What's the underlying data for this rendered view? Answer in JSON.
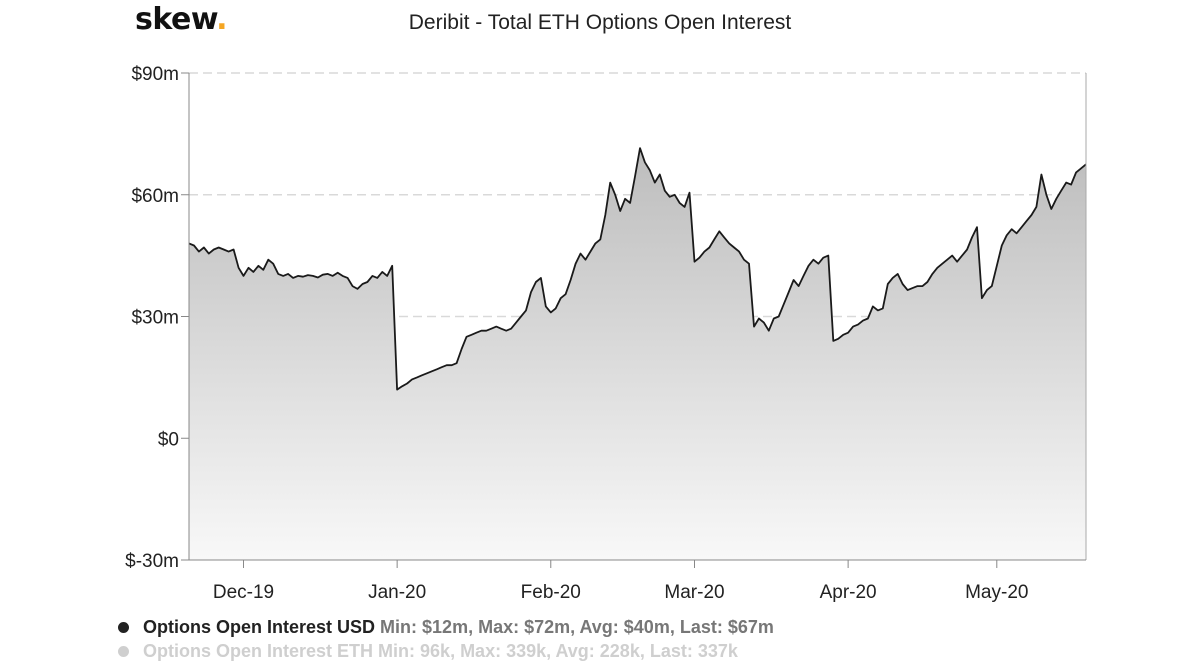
{
  "brand": {
    "name": "skew",
    "dot": "."
  },
  "title": "Deribit - Total ETH Options Open Interest",
  "legend": [
    {
      "name": "Options Open Interest USD",
      "stats": "Min: $12m, Max: $72m, Avg: $40m, Last: $67m",
      "color": "#222222",
      "active": true
    },
    {
      "name": "Options Open Interest ETH",
      "stats": "Min: 96k, Max: 339k, Avg: 228k, Last: 337k",
      "color": "#cfcfcf",
      "active": false
    }
  ],
  "chart_data": {
    "type": "area",
    "title": "Deribit - Total ETH Options Open Interest",
    "x_start": "2019-11-20",
    "x_end": "2020-05-19",
    "ylim": [
      -30,
      90
    ],
    "yticks": [
      {
        "value": 90,
        "label": "$90m"
      },
      {
        "value": 60,
        "label": "$60m"
      },
      {
        "value": 30,
        "label": "$30m"
      },
      {
        "value": 0,
        "label": "$0"
      },
      {
        "value": -30,
        "label": "$-30m"
      }
    ],
    "xticks": [
      {
        "date": "2019-12-01",
        "label": "Dec-19"
      },
      {
        "date": "2020-01-01",
        "label": "Jan-20"
      },
      {
        "date": "2020-02-01",
        "label": "Feb-20"
      },
      {
        "date": "2020-03-01",
        "label": "Mar-20"
      },
      {
        "date": "2020-04-01",
        "label": "Apr-20"
      },
      {
        "date": "2020-05-01",
        "label": "May-20"
      }
    ],
    "grid": true,
    "series": [
      {
        "name": "Options Open Interest USD",
        "unit": "$m",
        "points": [
          [
            "2019-11-20",
            48
          ],
          [
            "2019-11-21",
            47.5
          ],
          [
            "2019-11-22",
            46
          ],
          [
            "2019-11-23",
            47
          ],
          [
            "2019-11-24",
            45.5
          ],
          [
            "2019-11-25",
            46.5
          ],
          [
            "2019-11-26",
            47
          ],
          [
            "2019-11-27",
            46.5
          ],
          [
            "2019-11-28",
            46
          ],
          [
            "2019-11-29",
            46.5
          ],
          [
            "2019-11-30",
            42
          ],
          [
            "2019-12-01",
            40
          ],
          [
            "2019-12-02",
            42
          ],
          [
            "2019-12-03",
            41
          ],
          [
            "2019-12-04",
            42.5
          ],
          [
            "2019-12-05",
            41.5
          ],
          [
            "2019-12-06",
            44
          ],
          [
            "2019-12-07",
            43
          ],
          [
            "2019-12-08",
            40.5
          ],
          [
            "2019-12-09",
            40
          ],
          [
            "2019-12-10",
            40.5
          ],
          [
            "2019-12-11",
            39.5
          ],
          [
            "2019-12-12",
            40
          ],
          [
            "2019-12-13",
            39.8
          ],
          [
            "2019-12-14",
            40.2
          ],
          [
            "2019-12-15",
            40
          ],
          [
            "2019-12-16",
            39.6
          ],
          [
            "2019-12-17",
            40.3
          ],
          [
            "2019-12-18",
            40.5
          ],
          [
            "2019-12-19",
            40
          ],
          [
            "2019-12-20",
            40.8
          ],
          [
            "2019-12-21",
            40
          ],
          [
            "2019-12-22",
            39.5
          ],
          [
            "2019-12-23",
            37.5
          ],
          [
            "2019-12-24",
            36.8
          ],
          [
            "2019-12-25",
            38
          ],
          [
            "2019-12-26",
            38.5
          ],
          [
            "2019-12-27",
            40
          ],
          [
            "2019-12-28",
            39.5
          ],
          [
            "2019-12-29",
            41
          ],
          [
            "2019-12-30",
            40
          ],
          [
            "2019-12-31",
            42.5
          ],
          [
            "2020-01-01",
            12
          ],
          [
            "2020-01-02",
            12.8
          ],
          [
            "2020-01-03",
            13.5
          ],
          [
            "2020-01-04",
            14.5
          ],
          [
            "2020-01-05",
            15
          ],
          [
            "2020-01-06",
            15.5
          ],
          [
            "2020-01-07",
            16
          ],
          [
            "2020-01-08",
            16.5
          ],
          [
            "2020-01-09",
            17
          ],
          [
            "2020-01-10",
            17.5
          ],
          [
            "2020-01-11",
            18
          ],
          [
            "2020-01-12",
            18
          ],
          [
            "2020-01-13",
            18.5
          ],
          [
            "2020-01-14",
            22
          ],
          [
            "2020-01-15",
            25
          ],
          [
            "2020-01-16",
            25.5
          ],
          [
            "2020-01-17",
            26
          ],
          [
            "2020-01-18",
            26.5
          ],
          [
            "2020-01-19",
            26.5
          ],
          [
            "2020-01-20",
            27
          ],
          [
            "2020-01-21",
            27.5
          ],
          [
            "2020-01-22",
            27
          ],
          [
            "2020-01-23",
            26.5
          ],
          [
            "2020-01-24",
            27
          ],
          [
            "2020-01-25",
            28.5
          ],
          [
            "2020-01-26",
            30
          ],
          [
            "2020-01-27",
            31.5
          ],
          [
            "2020-01-28",
            36
          ],
          [
            "2020-01-29",
            38.5
          ],
          [
            "2020-01-30",
            39.5
          ],
          [
            "2020-01-31",
            32.5
          ],
          [
            "2020-02-01",
            31
          ],
          [
            "2020-02-02",
            32
          ],
          [
            "2020-02-03",
            34.5
          ],
          [
            "2020-02-04",
            35.5
          ],
          [
            "2020-02-05",
            39
          ],
          [
            "2020-02-06",
            43
          ],
          [
            "2020-02-07",
            45.5
          ],
          [
            "2020-02-08",
            44
          ],
          [
            "2020-02-09",
            46
          ],
          [
            "2020-02-10",
            48
          ],
          [
            "2020-02-11",
            49
          ],
          [
            "2020-02-12",
            55
          ],
          [
            "2020-02-13",
            63
          ],
          [
            "2020-02-14",
            60
          ],
          [
            "2020-02-15",
            56
          ],
          [
            "2020-02-16",
            59
          ],
          [
            "2020-02-17",
            58
          ],
          [
            "2020-02-18",
            64.5
          ],
          [
            "2020-02-19",
            71.5
          ],
          [
            "2020-02-20",
            68
          ],
          [
            "2020-02-21",
            66
          ],
          [
            "2020-02-22",
            63
          ],
          [
            "2020-02-23",
            65
          ],
          [
            "2020-02-24",
            61
          ],
          [
            "2020-02-25",
            59.5
          ],
          [
            "2020-02-26",
            60
          ],
          [
            "2020-02-27",
            58
          ],
          [
            "2020-02-28",
            57
          ],
          [
            "2020-02-29",
            60.5
          ],
          [
            "2020-03-01",
            43.5
          ],
          [
            "2020-03-02",
            44.5
          ],
          [
            "2020-03-03",
            46
          ],
          [
            "2020-03-04",
            47
          ],
          [
            "2020-03-05",
            49
          ],
          [
            "2020-03-06",
            51
          ],
          [
            "2020-03-07",
            49.5
          ],
          [
            "2020-03-08",
            48
          ],
          [
            "2020-03-09",
            47
          ],
          [
            "2020-03-10",
            46
          ],
          [
            "2020-03-11",
            44
          ],
          [
            "2020-03-12",
            43
          ],
          [
            "2020-03-13",
            27.5
          ],
          [
            "2020-03-14",
            29.5
          ],
          [
            "2020-03-15",
            28.5
          ],
          [
            "2020-03-16",
            26.5
          ],
          [
            "2020-03-17",
            29.5
          ],
          [
            "2020-03-18",
            30
          ],
          [
            "2020-03-19",
            33
          ],
          [
            "2020-03-20",
            36
          ],
          [
            "2020-03-21",
            39
          ],
          [
            "2020-03-22",
            37.5
          ],
          [
            "2020-03-23",
            40
          ],
          [
            "2020-03-24",
            42.5
          ],
          [
            "2020-03-25",
            44
          ],
          [
            "2020-03-26",
            43
          ],
          [
            "2020-03-27",
            44.5
          ],
          [
            "2020-03-28",
            45
          ],
          [
            "2020-03-29",
            24
          ],
          [
            "2020-03-30",
            24.5
          ],
          [
            "2020-03-31",
            25.5
          ],
          [
            "2020-04-01",
            26
          ],
          [
            "2020-04-02",
            27.5
          ],
          [
            "2020-04-03",
            28
          ],
          [
            "2020-04-04",
            29
          ],
          [
            "2020-04-05",
            29.5
          ],
          [
            "2020-04-06",
            32.5
          ],
          [
            "2020-04-07",
            31.5
          ],
          [
            "2020-04-08",
            32
          ],
          [
            "2020-04-09",
            38
          ],
          [
            "2020-04-10",
            39.5
          ],
          [
            "2020-04-11",
            40.5
          ],
          [
            "2020-04-12",
            38
          ],
          [
            "2020-04-13",
            36.5
          ],
          [
            "2020-04-14",
            37
          ],
          [
            "2020-04-15",
            37.5
          ],
          [
            "2020-04-16",
            37.5
          ],
          [
            "2020-04-17",
            38.5
          ],
          [
            "2020-04-18",
            40.5
          ],
          [
            "2020-04-19",
            42
          ],
          [
            "2020-04-20",
            43
          ],
          [
            "2020-04-21",
            44
          ],
          [
            "2020-04-22",
            45
          ],
          [
            "2020-04-23",
            43.5
          ],
          [
            "2020-04-24",
            45
          ],
          [
            "2020-04-25",
            46.5
          ],
          [
            "2020-04-26",
            49.5
          ],
          [
            "2020-04-27",
            52
          ],
          [
            "2020-04-28",
            34.5
          ],
          [
            "2020-04-29",
            36.5
          ],
          [
            "2020-04-30",
            37.5
          ],
          [
            "2020-05-01",
            42.5
          ],
          [
            "2020-05-02",
            47.5
          ],
          [
            "2020-05-03",
            50
          ],
          [
            "2020-05-04",
            51.5
          ],
          [
            "2020-05-05",
            50.5
          ],
          [
            "2020-05-06",
            52
          ],
          [
            "2020-05-07",
            53.5
          ],
          [
            "2020-05-08",
            55
          ],
          [
            "2020-05-09",
            57
          ],
          [
            "2020-05-10",
            65
          ],
          [
            "2020-05-11",
            60
          ],
          [
            "2020-05-12",
            56.5
          ],
          [
            "2020-05-13",
            59
          ],
          [
            "2020-05-14",
            61
          ],
          [
            "2020-05-15",
            63
          ],
          [
            "2020-05-16",
            62.5
          ],
          [
            "2020-05-17",
            65.5
          ],
          [
            "2020-05-18",
            66.5
          ],
          [
            "2020-05-19",
            67.5
          ]
        ]
      }
    ]
  }
}
